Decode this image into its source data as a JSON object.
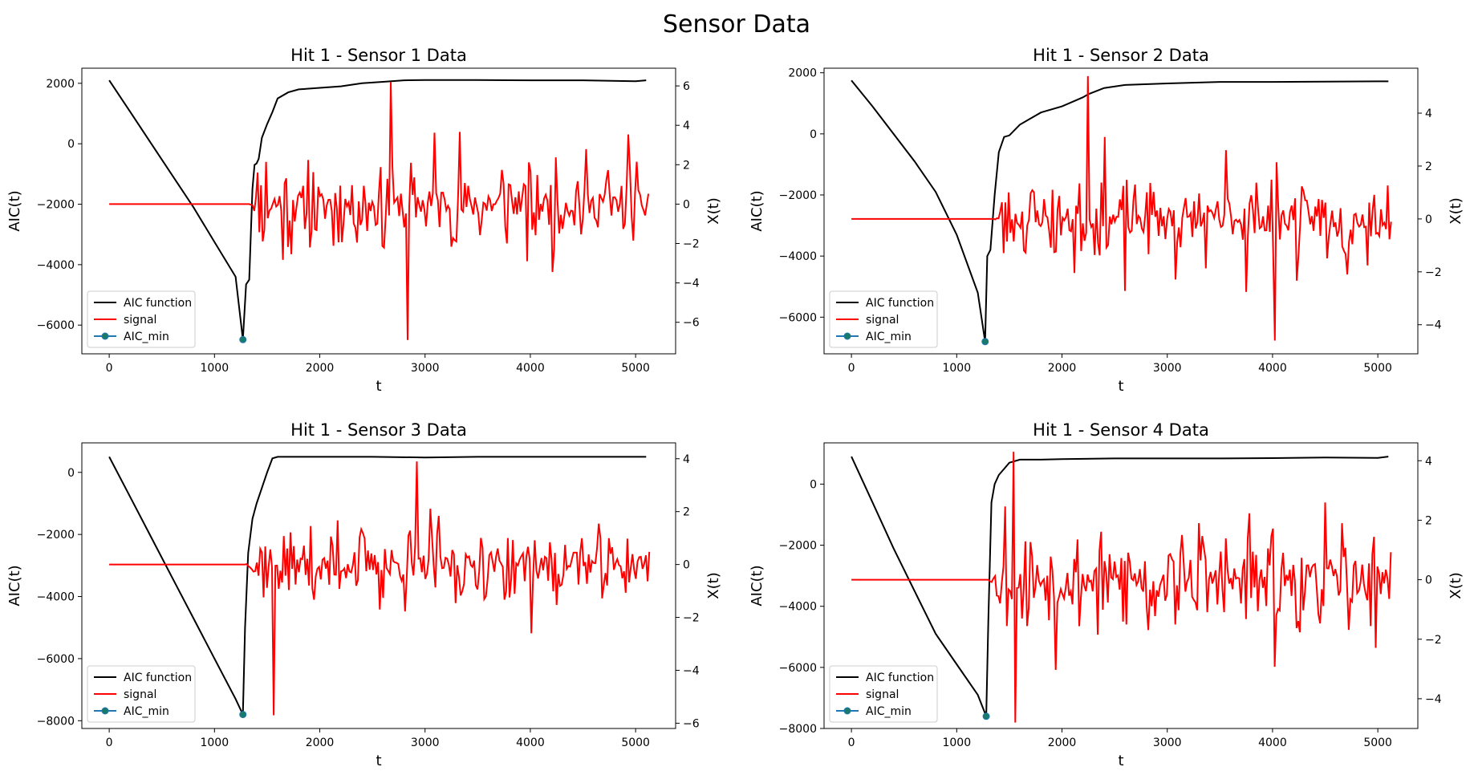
{
  "figure": {
    "title": "Sensor Data"
  },
  "colors": {
    "aic": "#000000",
    "signal": "#ff0000",
    "aic_min": "#1a7a6a",
    "aic_min_edge": "#1f77b4",
    "axes": "#000000",
    "legend_border": "#cccccc"
  },
  "chart_data": [
    {
      "type": "line",
      "title": "Hit 1 - Sensor 1 Data",
      "xlabel": "t",
      "ylabel": "AIC(t)",
      "y2label": "X(t)",
      "xlim": [
        -260,
        5380
      ],
      "ylim": [
        -6950,
        2500
      ],
      "y2lim": [
        -7.6,
        6.9
      ],
      "xticks": [
        0,
        1000,
        2000,
        3000,
        4000,
        5000
      ],
      "yticks": [
        -6000,
        -4000,
        -2000,
        0,
        2000
      ],
      "y2ticks": [
        -6,
        -4,
        -2,
        0,
        2,
        4,
        6
      ],
      "legend": {
        "placement": "lower left",
        "entries": [
          "AIC function",
          "signal",
          "AIC_min"
        ]
      },
      "aic_min": {
        "x": 1270,
        "y": -6480
      },
      "aic_curve": {
        "x": [
          0,
          200,
          400,
          600,
          800,
          1000,
          1200,
          1270,
          1300,
          1330,
          1360,
          1380,
          1400,
          1420,
          1450,
          1500,
          1550,
          1600,
          1700,
          1800,
          2000,
          2200,
          2400,
          2600,
          2800,
          3000,
          3500,
          4000,
          4500,
          5000,
          5100
        ],
        "y": [
          2100,
          1050,
          0,
          -1050,
          -2100,
          -3250,
          -4400,
          -6480,
          -4650,
          -4500,
          -1500,
          -700,
          -650,
          -500,
          200,
          650,
          1050,
          1500,
          1700,
          1800,
          1850,
          1900,
          2000,
          2050,
          2100,
          2110,
          2110,
          2100,
          2100,
          2070,
          2100
        ]
      },
      "signal": {
        "onset": 1330,
        "end": 5130,
        "step": 16,
        "baseline": 0,
        "peak_x": 2680,
        "peak_y": 6.2,
        "trough_x": 2830,
        "trough_y": -6.9,
        "amplitude": 2.4,
        "spike_every": 5,
        "spike_scale": 1.9,
        "seed": 11
      }
    },
    {
      "type": "line",
      "title": "Hit 1 - Sensor 2 Data",
      "xlabel": "t",
      "ylabel": "AIC(t)",
      "y2label": "X(t)",
      "xlim": [
        -260,
        5380
      ],
      "ylim": [
        -7200,
        2150
      ],
      "y2lim": [
        -5.1,
        5.7
      ],
      "xticks": [
        0,
        1000,
        2000,
        3000,
        4000,
        5000
      ],
      "yticks": [
        -6000,
        -4000,
        -2000,
        0,
        2000
      ],
      "y2ticks": [
        -4,
        -2,
        0,
        2,
        4
      ],
      "legend": {
        "placement": "lower left",
        "entries": [
          "AIC function",
          "signal",
          "AIC_min"
        ]
      },
      "aic_min": {
        "x": 1270,
        "y": -6800
      },
      "aic_curve": {
        "x": [
          0,
          200,
          400,
          600,
          800,
          1000,
          1200,
          1270,
          1290,
          1320,
          1360,
          1400,
          1450,
          1500,
          1600,
          1700,
          1800,
          2000,
          2200,
          2250,
          2400,
          2600,
          3000,
          3500,
          4000,
          4500,
          5000,
          5100
        ],
        "y": [
          1750,
          900,
          0,
          -900,
          -1900,
          -3300,
          -5200,
          -6800,
          -4000,
          -3800,
          -2000,
          -600,
          -100,
          -50,
          300,
          500,
          700,
          900,
          1200,
          1300,
          1500,
          1600,
          1650,
          1700,
          1700,
          1710,
          1720,
          1720
        ]
      },
      "signal": {
        "onset": 1350,
        "end": 5130,
        "step": 16,
        "baseline": 0,
        "peak_x": 2250,
        "peak_y": 5.4,
        "trough_x": 4020,
        "trough_y": -4.6,
        "amplitude": 1.6,
        "spike_every": 6,
        "spike_scale": 2.1,
        "seed": 23
      }
    },
    {
      "type": "line",
      "title": "Hit 1 - Sensor 3 Data",
      "xlabel": "t",
      "ylabel": "AIC(t)",
      "y2label": "X(t)",
      "xlim": [
        -260,
        5380
      ],
      "ylim": [
        -8250,
        950
      ],
      "y2lim": [
        -6.2,
        4.6
      ],
      "xticks": [
        0,
        1000,
        2000,
        3000,
        4000,
        5000
      ],
      "yticks": [
        -8000,
        -6000,
        -4000,
        -2000,
        0
      ],
      "y2ticks": [
        -6,
        -4,
        -2,
        0,
        2,
        4
      ],
      "legend": {
        "placement": "lower left",
        "entries": [
          "AIC function",
          "signal",
          "AIC_min"
        ]
      },
      "aic_min": {
        "x": 1270,
        "y": -7800
      },
      "aic_curve": {
        "x": [
          0,
          200,
          400,
          600,
          800,
          1000,
          1200,
          1270,
          1290,
          1320,
          1360,
          1400,
          1450,
          1500,
          1550,
          1600,
          1700,
          2000,
          2500,
          3000,
          3500,
          4000,
          4500,
          5000,
          5100
        ],
        "y": [
          500,
          -800,
          -2100,
          -3400,
          -4700,
          -6000,
          -7300,
          -7800,
          -5000,
          -2600,
          -1500,
          -1000,
          -500,
          0,
          450,
          500,
          500,
          500,
          500,
          480,
          500,
          500,
          500,
          500,
          500
        ]
      },
      "signal": {
        "onset": 1290,
        "end": 5130,
        "step": 16,
        "baseline": 0,
        "peak_x": 2920,
        "peak_y": 3.9,
        "trough_x": 1560,
        "trough_y": -5.7,
        "amplitude": 1.5,
        "spike_every": 5,
        "spike_scale": 1.8,
        "seed": 37
      }
    },
    {
      "type": "line",
      "title": "Hit 1 - Sensor 4 Data",
      "xlabel": "t",
      "ylabel": "AIC(t)",
      "y2label": "X(t)",
      "xlim": [
        -260,
        5380
      ],
      "ylim": [
        -8000,
        1350
      ],
      "y2lim": [
        -5.0,
        4.6
      ],
      "xticks": [
        0,
        1000,
        2000,
        3000,
        4000,
        5000
      ],
      "yticks": [
        -8000,
        -6000,
        -4000,
        -2000,
        0
      ],
      "y2ticks": [
        -4,
        -2,
        0,
        2,
        4
      ],
      "legend": {
        "placement": "lower left",
        "entries": [
          "AIC function",
          "signal",
          "AIC_min"
        ]
      },
      "aic_min": {
        "x": 1280,
        "y": -7600
      },
      "aic_curve": {
        "x": [
          0,
          200,
          400,
          600,
          800,
          1000,
          1200,
          1280,
          1300,
          1330,
          1360,
          1400,
          1450,
          1500,
          1600,
          1800,
          2000,
          2500,
          3000,
          3500,
          4000,
          4500,
          5000,
          5100
        ],
        "y": [
          900,
          -600,
          -2100,
          -3500,
          -4900,
          -5900,
          -6900,
          -7600,
          -4500,
          -600,
          0,
          300,
          500,
          700,
          800,
          800,
          820,
          840,
          840,
          840,
          850,
          870,
          860,
          900
        ]
      },
      "signal": {
        "onset": 1300,
        "end": 5130,
        "step": 16,
        "baseline": 0,
        "peak_x": 1540,
        "peak_y": 4.3,
        "trough_x": 1560,
        "trough_y": -4.8,
        "amplitude": 1.8,
        "spike_every": 5,
        "spike_scale": 2.0,
        "seed": 53
      }
    }
  ]
}
